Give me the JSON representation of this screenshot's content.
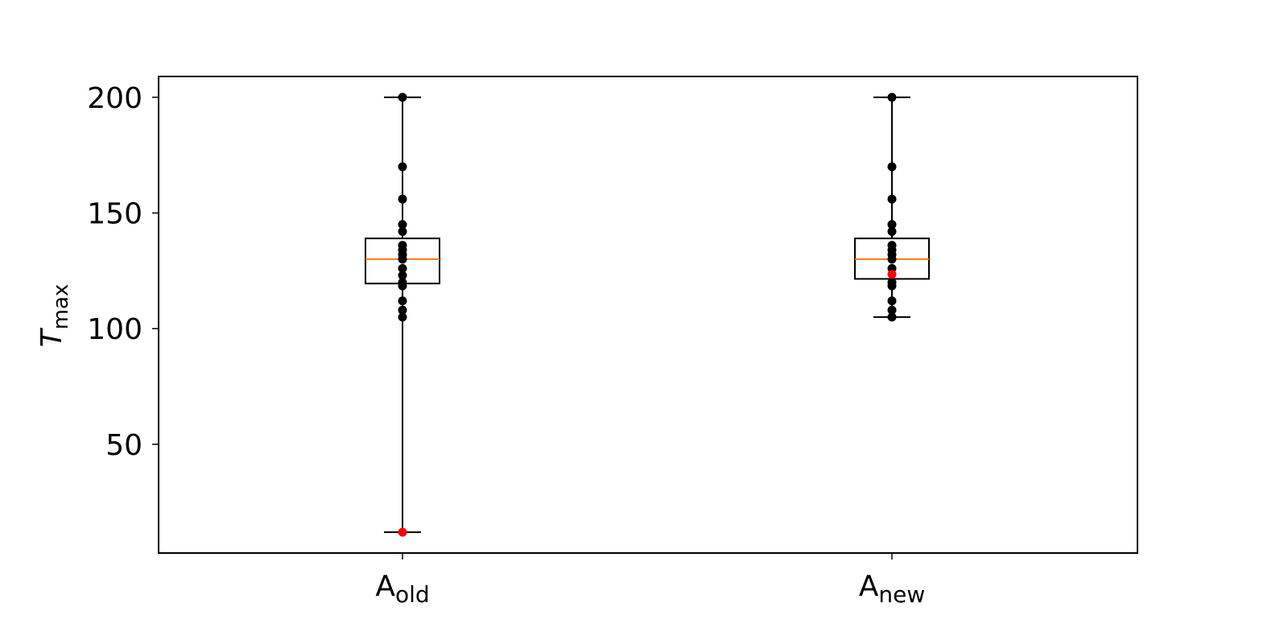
{
  "chart_data": {
    "type": "box",
    "ylabel": {
      "main": "T",
      "sub": "max"
    },
    "ylim": [
      3,
      209
    ],
    "yticks": [
      50,
      100,
      150,
      200
    ],
    "grid": false,
    "legend": "none",
    "colors": {
      "box": "#000000",
      "median": "#ff7f0e",
      "point": "#000000",
      "highlight": "#ff0000"
    },
    "categories": [
      {
        "main": "A",
        "sub": "old"
      },
      {
        "main": "A",
        "sub": "new"
      }
    ],
    "boxes": [
      {
        "category": "A_old",
        "whisker_low": 12,
        "q1": 119.5,
        "median": 130,
        "q3": 139,
        "whisker_high": 200,
        "points": [
          200,
          170,
          156,
          145,
          142,
          136,
          134,
          132,
          130,
          126,
          123,
          120,
          118.5,
          112,
          108,
          105
        ],
        "highlight_points": [
          12
        ]
      },
      {
        "category": "A_new",
        "whisker_low": 105,
        "q1": 121.5,
        "median": 130,
        "q3": 139,
        "whisker_high": 200,
        "points": [
          200,
          170,
          156,
          145,
          142,
          136,
          134,
          132,
          130,
          126,
          120,
          118.5,
          112,
          108,
          105
        ],
        "highlight_points": [
          123.5
        ]
      }
    ]
  }
}
